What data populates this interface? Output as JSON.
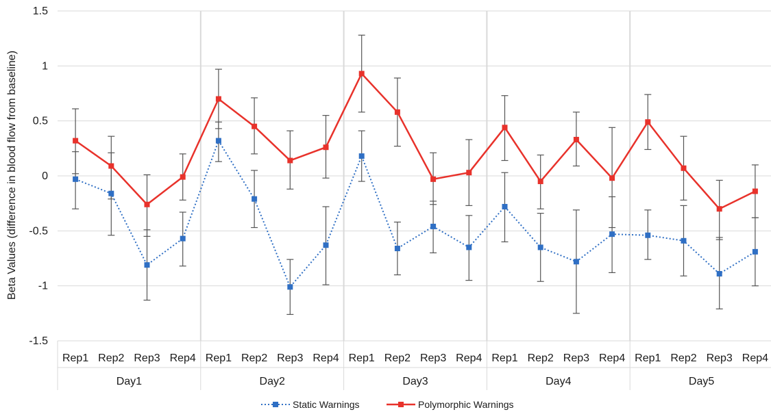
{
  "chart_data": {
    "type": "line",
    "ylabel": "Beta Values (difference in blood flow from baseline)",
    "xlabel": "",
    "ylim": [
      -1.5,
      1.5
    ],
    "yticks": [
      1.5,
      1,
      0.5,
      0,
      -0.5,
      -1,
      -1.5
    ],
    "ytick_labels": [
      "1.5",
      "1",
      "0.5",
      "0",
      "-0.5",
      "-1",
      "-1.5"
    ],
    "groups": [
      "Day1",
      "Day2",
      "Day3",
      "Day4",
      "Day5"
    ],
    "categories": [
      "Rep1",
      "Rep2",
      "Rep3",
      "Rep4",
      "Rep1",
      "Rep2",
      "Rep3",
      "Rep4",
      "Rep1",
      "Rep2",
      "Rep3",
      "Rep4",
      "Rep1",
      "Rep2",
      "Rep3",
      "Rep4",
      "Rep1",
      "Rep2",
      "Rep3",
      "Rep4"
    ],
    "grid": "vertical day separators",
    "legend_position": "bottom",
    "series": [
      {
        "name": "Static Warnings",
        "color": "#2f6fc4",
        "line_style": "dotted",
        "values": [
          -0.03,
          -0.16,
          -0.81,
          -0.57,
          0.32,
          -0.21,
          -1.01,
          -0.63,
          0.18,
          -0.66,
          -0.46,
          -0.65,
          -0.28,
          -0.65,
          -0.78,
          -0.53,
          -0.54,
          -0.59,
          -0.89,
          -0.69
        ],
        "err_low": [
          -0.3,
          -0.54,
          -1.13,
          -0.82,
          0.13,
          -0.47,
          -1.26,
          -0.99,
          -0.05,
          -0.9,
          -0.7,
          -0.95,
          -0.6,
          -0.96,
          -1.25,
          -0.88,
          -0.76,
          -0.91,
          -1.21,
          -1.0
        ],
        "err_high": [
          0.22,
          0.21,
          -0.49,
          -0.33,
          0.49,
          0.05,
          -0.76,
          -0.28,
          0.41,
          -0.42,
          -0.23,
          -0.36,
          0.03,
          -0.34,
          -0.31,
          -0.19,
          -0.31,
          -0.27,
          -0.56,
          -0.38
        ]
      },
      {
        "name": "Polymorphic Warnings",
        "color": "#e8322b",
        "line_style": "solid",
        "values": [
          0.32,
          0.09,
          -0.26,
          -0.01,
          0.7,
          0.45,
          0.14,
          0.26,
          0.93,
          0.58,
          -0.03,
          0.03,
          0.44,
          -0.05,
          0.33,
          -0.02,
          0.49,
          0.07,
          -0.3,
          -0.14
        ],
        "err_low": [
          0.02,
          -0.21,
          -0.55,
          -0.22,
          0.43,
          0.2,
          -0.12,
          -0.02,
          0.58,
          0.27,
          -0.26,
          -0.27,
          0.14,
          -0.3,
          0.09,
          -0.47,
          0.24,
          -0.22,
          -0.58,
          -0.38
        ],
        "err_high": [
          0.61,
          0.36,
          0.01,
          0.2,
          0.97,
          0.71,
          0.41,
          0.55,
          1.28,
          0.89,
          0.21,
          0.33,
          0.73,
          0.19,
          0.58,
          0.44,
          0.74,
          0.36,
          -0.04,
          0.1
        ]
      }
    ]
  }
}
